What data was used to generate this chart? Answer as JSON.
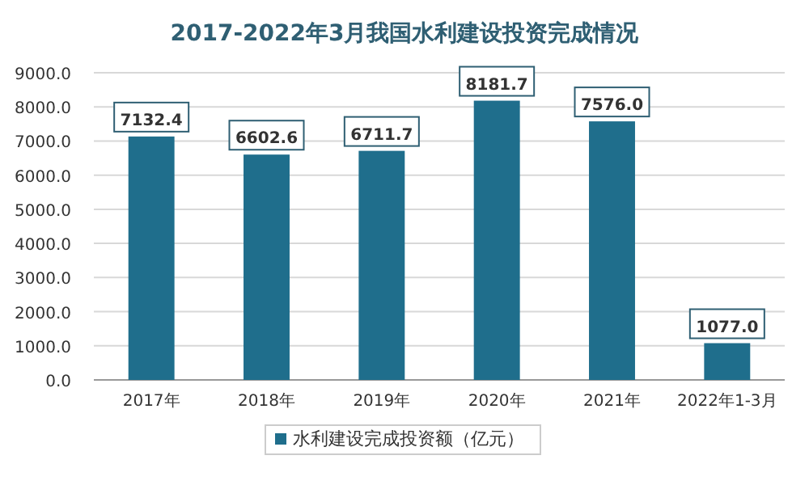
{
  "chart_data": {
    "type": "bar",
    "title": "2017-2022年3月我国水利建设投资完成情况",
    "categories": [
      "2017年",
      "2018年",
      "2019年",
      "2020年",
      "2021年",
      "2022年1-3月"
    ],
    "series": [
      {
        "name": "水利建设完成投资额（亿元）",
        "color": "#1f6e8c",
        "values": [
          7132.4,
          6602.6,
          6711.7,
          8181.7,
          7576.0,
          1077.0
        ]
      }
    ],
    "value_labels": [
      "7132.4",
      "6602.6",
      "6711.7",
      "8181.7",
      "7576.0",
      "1077.0"
    ],
    "ylim": [
      0,
      9000
    ],
    "yticks": [
      {
        "value": 0,
        "label": "0.0"
      },
      {
        "value": 1000,
        "label": "1000.0"
      },
      {
        "value": 2000,
        "label": "2000.0"
      },
      {
        "value": 3000,
        "label": "3000.0"
      },
      {
        "value": 4000,
        "label": "4000.0"
      },
      {
        "value": 5000,
        "label": "5000.0"
      },
      {
        "value": 6000,
        "label": "6000.0"
      },
      {
        "value": 7000,
        "label": "7000.0"
      },
      {
        "value": 8000,
        "label": "8000.0"
      },
      {
        "value": 9000,
        "label": "9000.0"
      }
    ],
    "grid": "y",
    "legend": "bottom"
  }
}
